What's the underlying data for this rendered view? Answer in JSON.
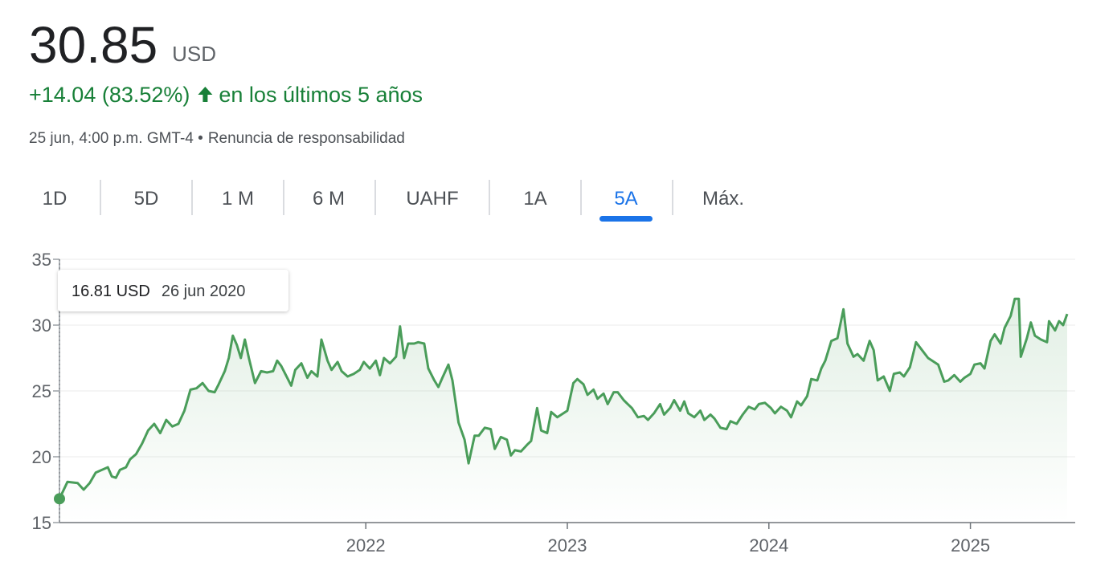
{
  "header": {
    "price": "30.85",
    "currency": "USD",
    "change": "+14.04 (83.52%)",
    "period": "en los últimos 5 años",
    "timestamp": "25 jun, 4:00 p.m. GMT-4 •",
    "disclaimer": "Renuncia de responsabilidad"
  },
  "tabs": {
    "items": [
      "1D",
      "5D",
      "1 M",
      "6 M",
      "UAHF",
      "1A",
      "5A",
      "Máx."
    ],
    "selected": "5A"
  },
  "chart_data": {
    "type": "line",
    "color": "#4a9d5a",
    "grid": true,
    "tooltip": {
      "value": "16.81 USD",
      "date": "26 jun 2020"
    },
    "xlim": [
      2020.48,
      2025.52
    ],
    "xticks": [
      2022,
      2023,
      2024,
      2025
    ],
    "ylim": [
      15,
      35
    ],
    "yticks": [
      15,
      20,
      25,
      30,
      35
    ],
    "x": [
      2020.48,
      2020.52,
      2020.57,
      2020.6,
      2020.63,
      2020.66,
      2020.69,
      2020.72,
      2020.74,
      2020.76,
      2020.78,
      2020.81,
      2020.83,
      2020.86,
      2020.89,
      2020.92,
      2020.95,
      2020.98,
      2021.01,
      2021.04,
      2021.07,
      2021.1,
      2021.13,
      2021.16,
      2021.19,
      2021.22,
      2021.25,
      2021.27,
      2021.3,
      2021.32,
      2021.34,
      2021.36,
      2021.38,
      2021.4,
      2021.42,
      2021.45,
      2021.48,
      2021.51,
      2021.54,
      2021.56,
      2021.58,
      2021.61,
      2021.63,
      2021.65,
      2021.68,
      2021.71,
      2021.73,
      2021.76,
      2021.78,
      2021.81,
      2021.83,
      2021.86,
      2021.88,
      2021.91,
      2021.94,
      2021.97,
      2021.99,
      2022.02,
      2022.05,
      2022.07,
      2022.09,
      2022.12,
      2022.15,
      2022.17,
      2022.19,
      2022.21,
      2022.24,
      2022.26,
      2022.29,
      2022.31,
      2022.34,
      2022.36,
      2022.38,
      2022.41,
      2022.43,
      2022.46,
      2022.49,
      2022.51,
      2022.54,
      2022.56,
      2022.59,
      2022.62,
      2022.64,
      2022.67,
      2022.7,
      2022.72,
      2022.74,
      2022.77,
      2022.8,
      2022.82,
      2022.85,
      2022.87,
      2022.9,
      2022.92,
      2022.95,
      2022.97,
      2023.0,
      2023.03,
      2023.05,
      2023.08,
      2023.1,
      2023.13,
      2023.15,
      2023.18,
      2023.2,
      2023.23,
      2023.25,
      2023.28,
      2023.3,
      2023.32,
      2023.35,
      2023.38,
      2023.4,
      2023.43,
      2023.46,
      2023.48,
      2023.51,
      2023.53,
      2023.56,
      2023.58,
      2023.6,
      2023.63,
      2023.66,
      2023.68,
      2023.71,
      2023.73,
      2023.76,
      2023.79,
      2023.81,
      2023.84,
      2023.87,
      2023.9,
      2023.93,
      2023.95,
      2023.98,
      2024.01,
      2024.03,
      2024.06,
      2024.09,
      2024.11,
      2024.14,
      2024.16,
      2024.19,
      2024.21,
      2024.24,
      2024.26,
      2024.28,
      2024.31,
      2024.34,
      2024.37,
      2024.39,
      2024.42,
      2024.44,
      2024.47,
      2024.5,
      2024.52,
      2024.54,
      2024.57,
      2024.6,
      2024.62,
      2024.65,
      2024.67,
      2024.7,
      2024.73,
      2024.76,
      2024.79,
      2024.81,
      2024.84,
      2024.87,
      2024.89,
      2024.92,
      2024.95,
      2024.97,
      2025.0,
      2025.02,
      2025.05,
      2025.07,
      2025.1,
      2025.12,
      2025.15,
      2025.17,
      2025.2,
      2025.22,
      2025.24,
      2025.25,
      2025.28,
      2025.3,
      2025.32,
      2025.35,
      2025.38,
      2025.39,
      2025.42,
      2025.44,
      2025.46,
      2025.48
    ],
    "values": [
      16.81,
      18.1,
      18.0,
      17.5,
      18.0,
      18.8,
      19.0,
      19.2,
      18.5,
      18.4,
      19.0,
      19.2,
      19.8,
      20.2,
      21.0,
      22.0,
      22.5,
      21.8,
      22.8,
      22.3,
      22.5,
      23.5,
      25.1,
      25.2,
      25.6,
      25.0,
      24.9,
      25.5,
      26.5,
      27.5,
      29.2,
      28.5,
      27.5,
      28.9,
      27.5,
      25.6,
      26.5,
      26.4,
      26.5,
      27.3,
      26.9,
      26.0,
      25.4,
      26.6,
      27.1,
      26.0,
      26.5,
      26.1,
      28.9,
      27.3,
      26.6,
      27.2,
      26.5,
      26.1,
      26.3,
      26.6,
      27.2,
      26.7,
      27.3,
      26.2,
      27.5,
      27.1,
      27.6,
      29.9,
      27.5,
      28.6,
      28.6,
      28.7,
      28.6,
      26.7,
      25.8,
      25.3,
      26.0,
      27.0,
      25.8,
      22.6,
      21.3,
      19.5,
      21.6,
      21.6,
      22.2,
      22.1,
      20.6,
      21.5,
      21.3,
      20.1,
      20.5,
      20.4,
      20.9,
      21.2,
      23.7,
      22.0,
      21.8,
      23.4,
      23.0,
      23.2,
      23.5,
      25.6,
      25.9,
      25.5,
      24.7,
      25.1,
      24.4,
      24.8,
      24.0,
      24.9,
      24.9,
      24.3,
      24.0,
      23.7,
      23.0,
      23.1,
      22.8,
      23.3,
      24.0,
      23.2,
      23.7,
      24.3,
      23.5,
      24.2,
      23.3,
      23.0,
      23.5,
      22.8,
      23.2,
      22.9,
      22.2,
      22.1,
      22.7,
      22.5,
      23.2,
      23.8,
      23.6,
      24.0,
      24.1,
      23.7,
      23.3,
      23.8,
      23.5,
      23.0,
      24.2,
      23.9,
      24.6,
      25.9,
      25.8,
      26.7,
      27.3,
      28.8,
      29.0,
      31.2,
      28.6,
      27.6,
      27.8,
      27.3,
      28.8,
      28.1,
      25.8,
      26.1,
      25.0,
      26.3,
      26.4,
      26.1,
      26.8,
      28.7,
      28.1,
      27.5,
      27.3,
      27.0,
      25.7,
      25.8,
      26.2,
      25.7,
      26.0,
      26.3,
      27.0,
      27.1,
      26.7,
      28.8,
      29.3,
      28.6,
      29.8,
      30.7,
      32.0,
      32.0,
      27.6,
      29.0,
      30.2,
      29.2,
      28.9,
      28.7,
      30.3,
      29.6,
      30.3,
      30.0,
      30.85
    ]
  }
}
